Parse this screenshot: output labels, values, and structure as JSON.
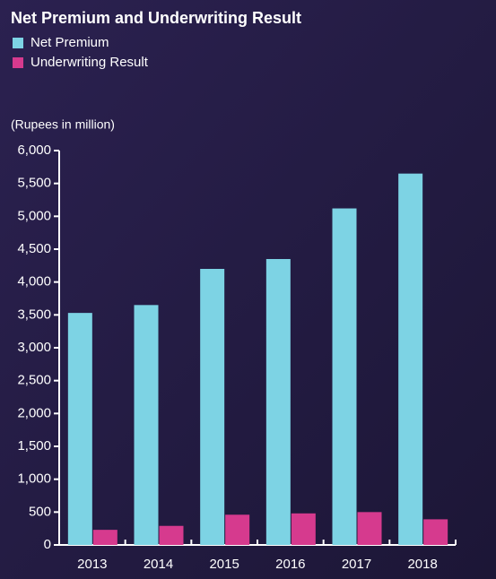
{
  "chart_data": {
    "type": "bar",
    "title": "Net Premium and Underwriting Result",
    "y_label": "(Rupees in million)",
    "categories": [
      "2013",
      "2014",
      "2015",
      "2016",
      "2017",
      "2018"
    ],
    "series": [
      {
        "name": "Net Premium",
        "color": "#7dd3e4",
        "values": [
          3530,
          3650,
          4200,
          4350,
          5120,
          5650
        ]
      },
      {
        "name": "Underwriting Result",
        "color": "#d63a8e",
        "values": [
          230,
          290,
          460,
          480,
          500,
          390
        ]
      }
    ],
    "ylim": [
      0,
      6000
    ],
    "yticks": [
      0,
      500,
      {
        "value": 1000,
        "label": "1,000"
      },
      {
        "value": 1500,
        "label": "1,500"
      },
      {
        "value": 2000,
        "label": "2,000"
      },
      {
        "value": 2500,
        "label": "2,500"
      },
      {
        "value": 3000,
        "label": "3,000"
      },
      {
        "value": 3500,
        "label": "3,500"
      },
      {
        "value": 4000,
        "label": "4,000"
      },
      {
        "value": 4500,
        "label": "4,500"
      },
      {
        "value": 5000,
        "label": "5,000"
      },
      {
        "value": 5500,
        "label": "5,500"
      },
      {
        "value": 6000,
        "label": "6,000"
      }
    ],
    "legend": "top-left"
  }
}
